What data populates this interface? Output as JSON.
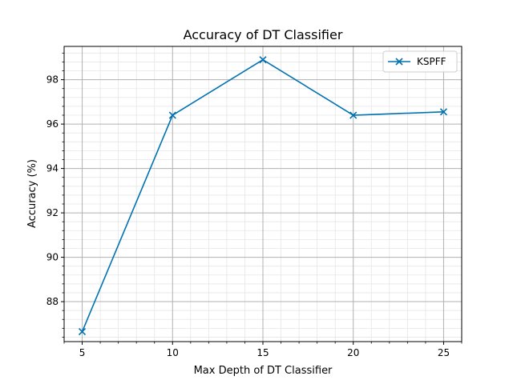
{
  "chart_data": {
    "type": "line",
    "title": "Accuracy of DT Classifier",
    "xlabel": "Max Depth of DT Classifier",
    "ylabel": "Accuracy (%)",
    "x": [
      5,
      10,
      15,
      20,
      25
    ],
    "xticks": [
      5,
      10,
      15,
      20,
      25
    ],
    "xticks_minor_step": 1,
    "yticks": [
      88,
      90,
      92,
      94,
      96,
      98
    ],
    "yticks_minor_step": 0.4,
    "xlim": [
      4.0,
      26.0
    ],
    "ylim": [
      86.2,
      99.5
    ],
    "grid": true,
    "legend_position": "top-right",
    "series": [
      {
        "name": "KSPFF",
        "values": [
          86.65,
          96.4,
          98.9,
          96.4,
          96.55
        ],
        "color": "#0072B2",
        "marker": "x"
      }
    ]
  }
}
